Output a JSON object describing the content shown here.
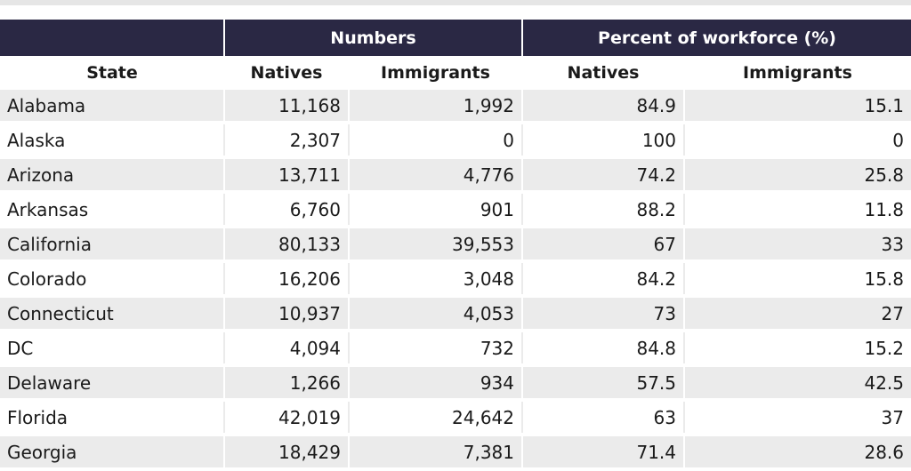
{
  "table": {
    "group_headers": [
      "Numbers",
      "Percent of workforce (%)"
    ],
    "columns": [
      "State",
      "Natives",
      "Immigrants",
      "Natives",
      "Immigrants"
    ],
    "rows": [
      [
        "Alabama",
        "11,168",
        "1,992",
        "84.9",
        "15.1"
      ],
      [
        "Alaska",
        "2,307",
        "0",
        "100",
        "0"
      ],
      [
        "Arizona",
        "13,711",
        "4,776",
        "74.2",
        "25.8"
      ],
      [
        "Arkansas",
        "6,760",
        "901",
        "88.2",
        "11.8"
      ],
      [
        "California",
        "80,133",
        "39,553",
        "67",
        "33"
      ],
      [
        "Colorado",
        "16,206",
        "3,048",
        "84.2",
        "15.8"
      ],
      [
        "Connecticut",
        "10,937",
        "4,053",
        "73",
        "27"
      ],
      [
        "DC",
        "4,094",
        "732",
        "84.8",
        "15.2"
      ],
      [
        "Delaware",
        "1,266",
        "934",
        "57.5",
        "42.5"
      ],
      [
        "Florida",
        "42,019",
        "24,642",
        "63",
        "37"
      ],
      [
        "Georgia",
        "18,429",
        "7,381",
        "71.4",
        "28.6"
      ]
    ]
  },
  "colors": {
    "header_bg": "#2a2844",
    "row_stripe": "#ebebeb"
  }
}
